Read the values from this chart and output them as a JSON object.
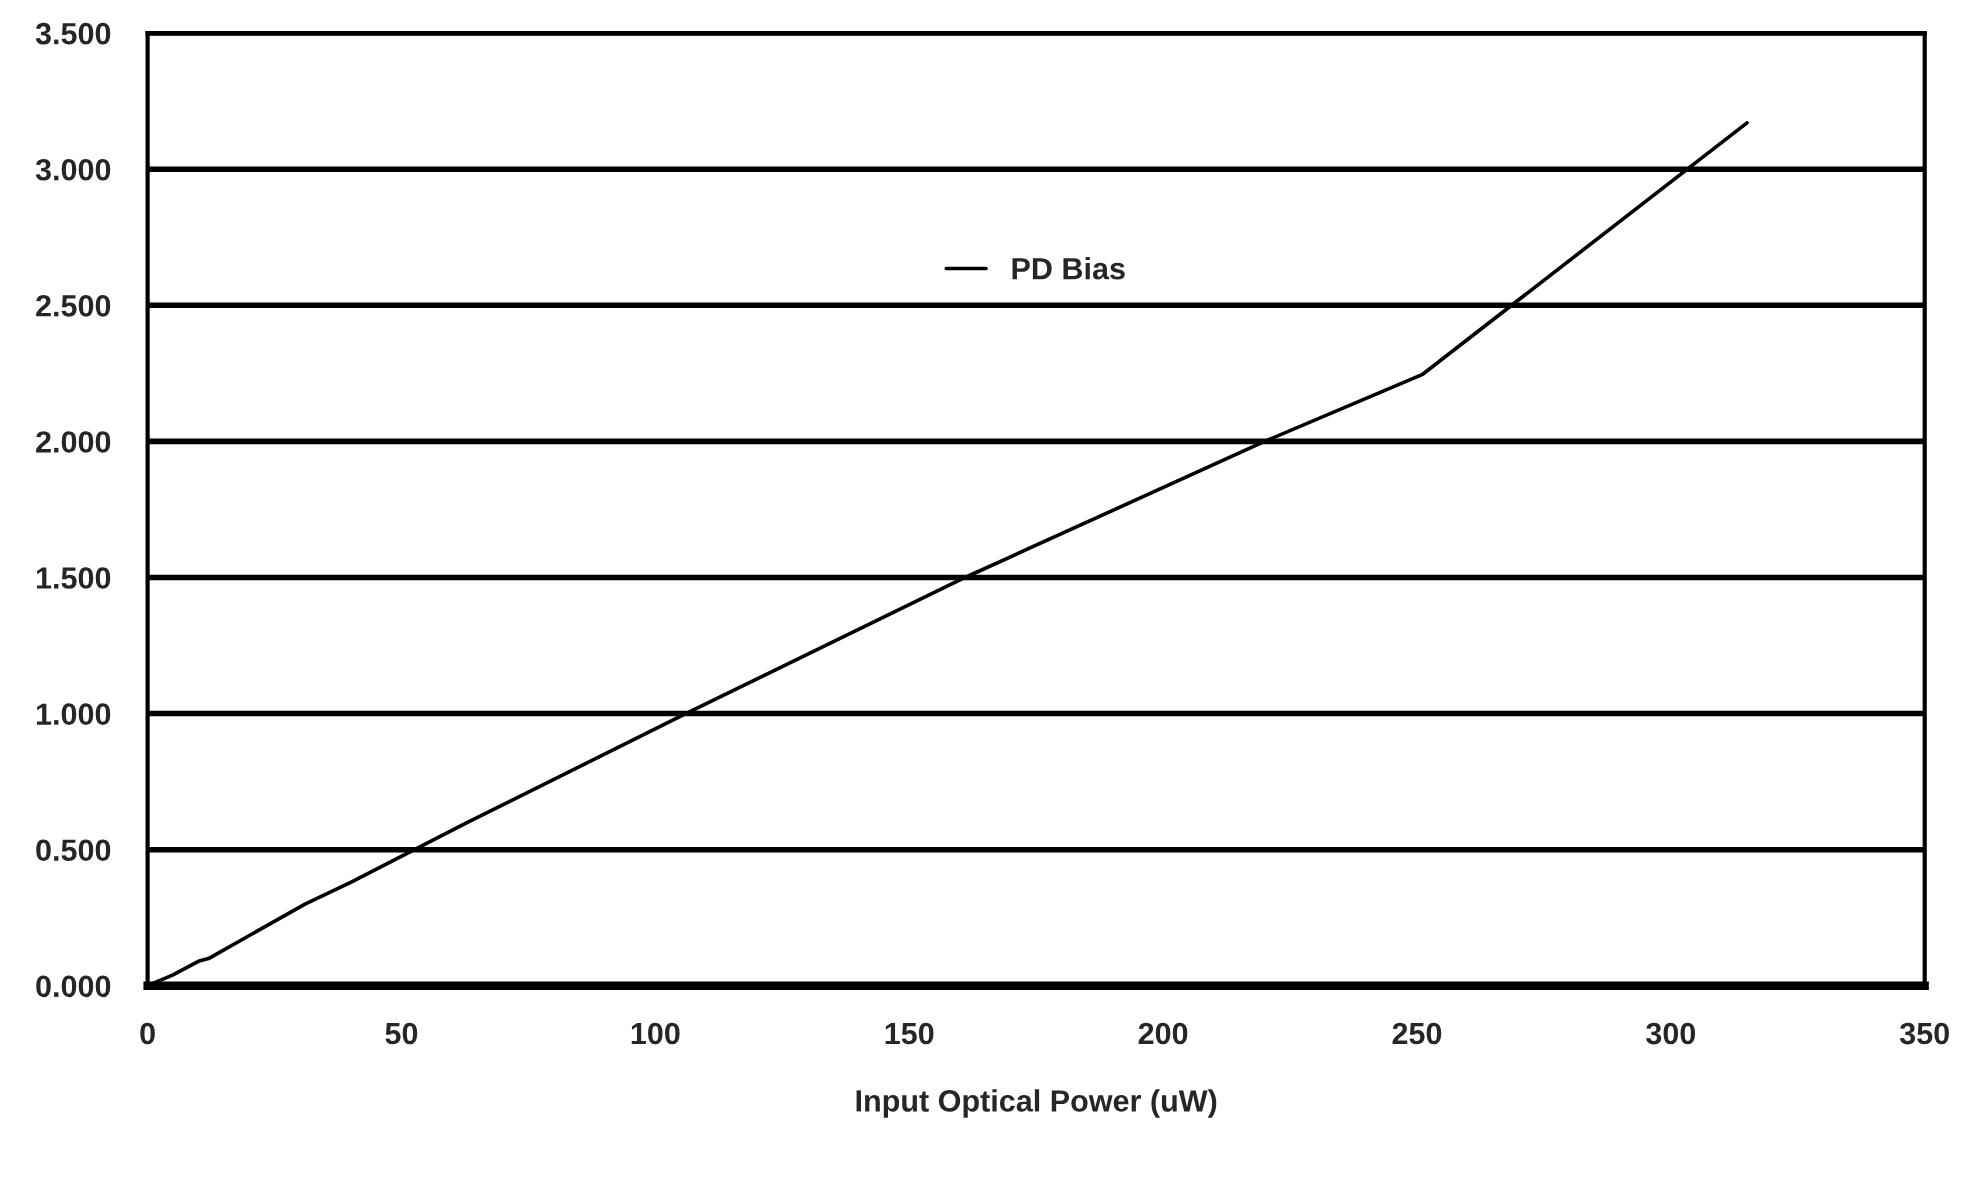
{
  "chart_data": {
    "type": "line",
    "xlabel": "Input Optical Power (uW)",
    "series": [
      {
        "name": "PD Bias",
        "color": "#000000",
        "x": [
          0,
          5,
          10,
          12,
          31,
          40,
          63,
          106,
          161,
          220,
          251,
          315
        ],
        "values": [
          0,
          0.04,
          0.09,
          0.1,
          0.3,
          0.38,
          0.6,
          1.0,
          1.5,
          2.0,
          2.245,
          3.17
        ]
      }
    ],
    "xlim": [
      0,
      350
    ],
    "xticks": [
      0,
      50,
      100,
      150,
      200,
      250,
      300,
      350
    ],
    "ylim": [
      0,
      3.5
    ],
    "yticks": [
      {
        "value": 0,
        "label": "0.000"
      },
      {
        "value": 0.5,
        "label": "0.500"
      },
      {
        "value": 1,
        "label": "1.000"
      },
      {
        "value": 1.5,
        "label": "1.500"
      },
      {
        "value": 2,
        "label": "2.000"
      },
      {
        "value": 2.5,
        "label": "2.500"
      },
      {
        "value": 3,
        "label": "3.000"
      },
      {
        "value": 3.5,
        "label": "3.500"
      }
    ],
    "grid": "y",
    "legend": "center",
    "marker": "none",
    "line_style": "solid"
  }
}
